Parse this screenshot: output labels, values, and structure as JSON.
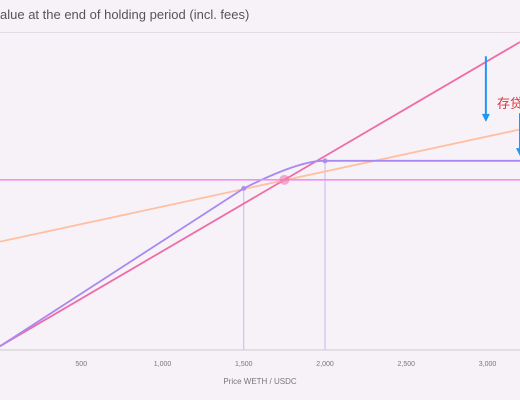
{
  "chart_data": {
    "type": "line",
    "title": "alue at the end of holding period  (incl. fees)",
    "xlabel": "Price WETH / USDC",
    "ylabel": "",
    "xlim": [
      0,
      3200
    ],
    "x_ticks": [
      "500",
      "1,000",
      "1,500",
      "2,000",
      "2,500",
      "3,000"
    ],
    "x_tick_values": [
      500,
      1000,
      1500,
      2000,
      2500,
      3000
    ],
    "grid": false,
    "annotation": "存贷",
    "reference_lines_x": [
      1500,
      2000
    ],
    "series": [
      {
        "name": "",
        "color": "#f06ca8",
        "x": [
          0,
          3200
        ],
        "y": [
          0,
          3200
        ]
      },
      {
        "name": "",
        "color": "#ffbfa0",
        "x": [
          0,
          3200
        ],
        "y": [
          1100,
          2280
        ]
      },
      {
        "name": "",
        "color": "#a88af0",
        "x": [
          0,
          1500,
          1750,
          1900,
          2000,
          3200
        ],
        "y": [
          0,
          1660,
          1900,
          1950,
          1950,
          1950
        ]
      },
      {
        "name": "",
        "color": "#f090f0",
        "x": [
          0,
          3200
        ],
        "y": [
          1750,
          1750
        ]
      }
    ],
    "markers": [
      {
        "x": 1750,
        "y": 1750,
        "color": "#f06ca8"
      },
      {
        "x": 1500,
        "y": 1660,
        "color": "#a88af0"
      },
      {
        "x": 2000,
        "y": 1950,
        "color": "#a88af0"
      }
    ],
    "arrows": [
      {
        "x": 2990,
        "y_from": 3050,
        "y_to": 2360
      },
      {
        "x": 3200,
        "y_from": 2450,
        "y_to": 2000
      }
    ]
  }
}
